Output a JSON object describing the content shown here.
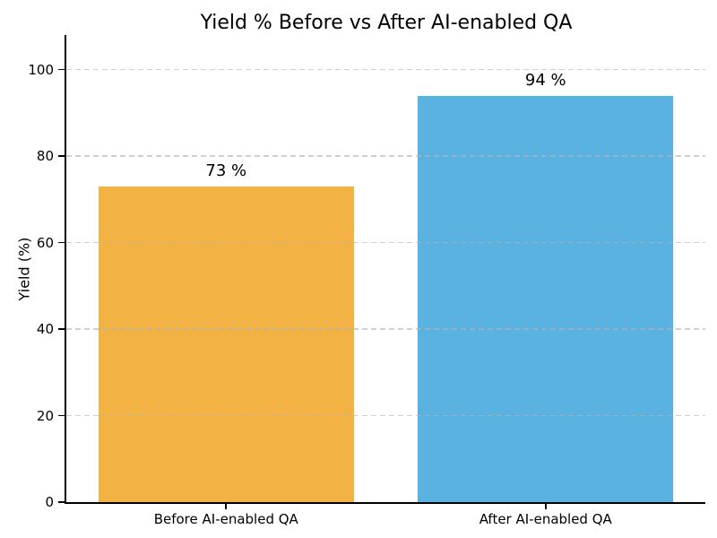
{
  "chart_data": {
    "type": "bar",
    "title": "Yield % Before vs After AI-enabled QA",
    "categories": [
      "Before AI-enabled QA",
      "After AI-enabled QA"
    ],
    "values": [
      73,
      94
    ],
    "value_labels": [
      "73 %",
      "94 %"
    ],
    "bar_colors": [
      "#F2B344",
      "#5AB2E0"
    ],
    "xlabel": "",
    "ylabel": "Yield (%)",
    "yticks": [
      0,
      20,
      40,
      60,
      80,
      100
    ],
    "ylim": [
      0,
      108
    ],
    "grid": "horizontal-dashed",
    "legend_position": "none",
    "bar_width_fraction": 0.8
  },
  "style": {
    "grid_color": "#BBBBBB",
    "spine_color": "#000000",
    "text_color": "#000000",
    "background": "#FFFFFF"
  }
}
